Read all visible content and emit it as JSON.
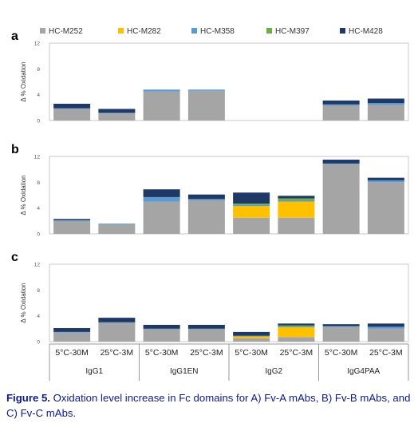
{
  "legend": [
    {
      "name": "HC-M252",
      "color": "#a5a5a5"
    },
    {
      "name": "HC-M282",
      "color": "#ffc000"
    },
    {
      "name": "HC-M358",
      "color": "#5b9bd5"
    },
    {
      "name": "HC-M397",
      "color": "#70ad47"
    },
    {
      "name": "HC-M428",
      "color": "#203864"
    }
  ],
  "chart_data": [
    {
      "type": "bar",
      "stacked": true,
      "panel_label": "a",
      "ylabel": "Δ % Oxidation",
      "ylim": [
        0,
        12
      ],
      "yticks": [
        0,
        4,
        8,
        12
      ],
      "categories": [
        "5°C-30M",
        "25°C-3M",
        "5°C-30M",
        "25°C-3M",
        "5°C-30M",
        "25°C-3M",
        "5°C-30M",
        "25°C-3M"
      ],
      "series": [
        {
          "name": "HC-M252",
          "values": [
            1.8,
            1.1,
            4.5,
            4.6,
            0,
            0,
            2.3,
            2.4
          ]
        },
        {
          "name": "HC-M282",
          "values": [
            0,
            0,
            0,
            0,
            0,
            0,
            0,
            0
          ]
        },
        {
          "name": "HC-M358",
          "values": [
            0.1,
            0.1,
            0.3,
            0.2,
            0,
            0,
            0.2,
            0.3
          ]
        },
        {
          "name": "HC-M397",
          "values": [
            0,
            0,
            0,
            0,
            0,
            0,
            0,
            0
          ]
        },
        {
          "name": "HC-M428",
          "values": [
            0.7,
            0.6,
            0,
            0,
            0,
            0,
            0.6,
            0.7
          ]
        }
      ]
    },
    {
      "type": "bar",
      "stacked": true,
      "panel_label": "b",
      "ylabel": "Δ % Oxidation",
      "ylim": [
        0,
        12
      ],
      "yticks": [
        0,
        4,
        8,
        12
      ],
      "categories": [
        "5°C-30M",
        "25°C-3M",
        "5°C-30M",
        "25°C-3M",
        "5°C-30M",
        "25°C-3M",
        "5°C-30M",
        "25°C-3M"
      ],
      "series": [
        {
          "name": "HC-M252",
          "values": [
            2.0,
            1.5,
            5.0,
            5.2,
            2.5,
            2.5,
            10.8,
            8.0
          ]
        },
        {
          "name": "HC-M282",
          "values": [
            0,
            0,
            0,
            0,
            1.8,
            2.5,
            0,
            0
          ]
        },
        {
          "name": "HC-M358",
          "values": [
            0.1,
            0.1,
            0.7,
            0.2,
            0.2,
            0.2,
            0.1,
            0.3
          ]
        },
        {
          "name": "HC-M397",
          "values": [
            0,
            0,
            0,
            0,
            0.2,
            0.3,
            0,
            0
          ]
        },
        {
          "name": "HC-M428",
          "values": [
            0.2,
            0,
            1.2,
            0.7,
            1.7,
            0.4,
            0.6,
            0.4
          ]
        }
      ]
    },
    {
      "type": "bar",
      "stacked": true,
      "panel_label": "c",
      "ylabel": "Δ % Oxidation",
      "ylim": [
        0,
        12
      ],
      "yticks": [
        0,
        4,
        8,
        12
      ],
      "categories": [
        "5°C-30M",
        "25°C-3M",
        "5°C-30M",
        "25°C-3M",
        "5°C-30M",
        "25°C-3M",
        "5°C-30M",
        "25°C-3M"
      ],
      "series": [
        {
          "name": "HC-M252",
          "values": [
            1.4,
            2.9,
            1.9,
            1.9,
            0.5,
            0.7,
            2.3,
            2.0
          ]
        },
        {
          "name": "HC-M282",
          "values": [
            0,
            0,
            0,
            0,
            0.3,
            1.5,
            0,
            0
          ]
        },
        {
          "name": "HC-M358",
          "values": [
            0.1,
            0.1,
            0.1,
            0.1,
            0.1,
            0.1,
            0.1,
            0.3
          ]
        },
        {
          "name": "HC-M397",
          "values": [
            0,
            0,
            0,
            0,
            0,
            0.2,
            0,
            0
          ]
        },
        {
          "name": "HC-M428",
          "values": [
            0.6,
            0.7,
            0.6,
            0.6,
            0.6,
            0.3,
            0.3,
            0.5
          ]
        }
      ]
    }
  ],
  "x_groups": [
    "IgG1",
    "IgG1EN",
    "IgG2",
    "IgG4PAA"
  ],
  "caption": {
    "label": "Figure 5.",
    "text": " Oxidation level increase in Fc domains for A) Fv-A mAbs, B) Fv-B mAbs, and C) Fv-C mAbs."
  }
}
